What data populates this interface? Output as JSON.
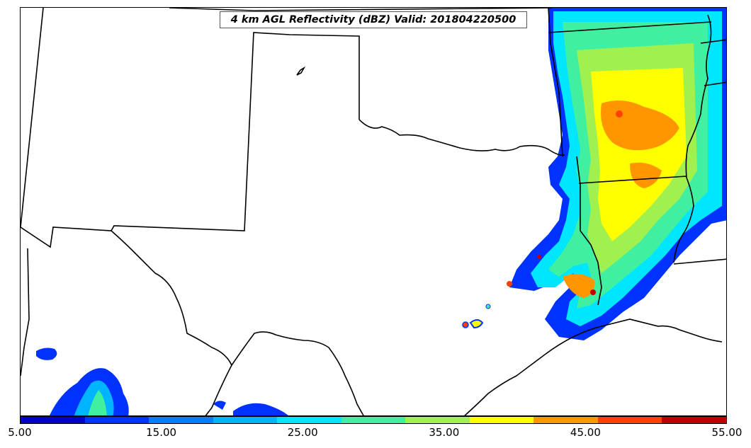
{
  "title": "4 km AGL Reflectivity (dBZ) Valid: 201804220500",
  "colorbar": {
    "colors": [
      "#0000c8",
      "#0032ff",
      "#0080ff",
      "#00b4ff",
      "#00e6ff",
      "#40f0a0",
      "#a0f050",
      "#ffff00",
      "#ff9600",
      "#ff4000",
      "#c00000"
    ],
    "labels": [
      "5.00",
      "15.00",
      "25.00",
      "35.00",
      "45.00",
      "55.00"
    ]
  },
  "colors": {
    "boundaries": "#000000",
    "background": "#ffffff"
  }
}
